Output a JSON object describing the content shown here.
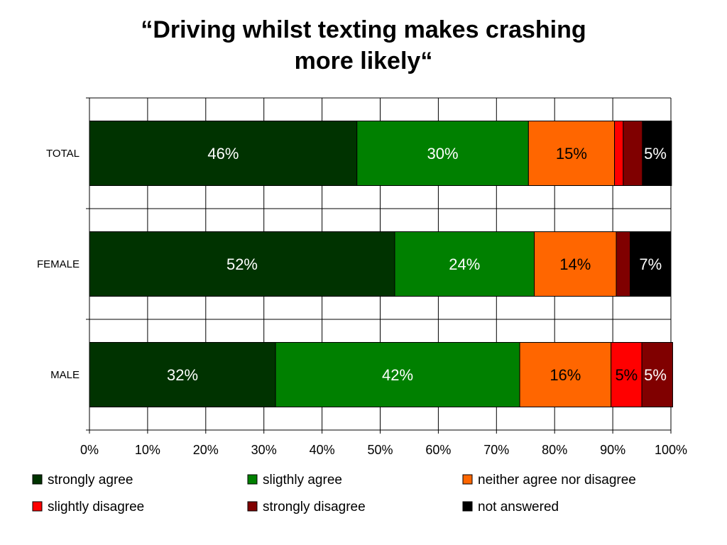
{
  "chart_data": {
    "type": "stacked-bar-horizontal",
    "title_lines": [
      "“Driving whilst texting makes crashing",
      "more likely“"
    ],
    "categories": [
      "TOTAL",
      "FEMALE",
      "MALE"
    ],
    "xlim": [
      0,
      100
    ],
    "xticks": [
      "0%",
      "10%",
      "20%",
      "30%",
      "40%",
      "50%",
      "60%",
      "70%",
      "80%",
      "90%",
      "100%"
    ],
    "grid": true,
    "legend_position": "bottom",
    "series": [
      {
        "name": "strongly agree",
        "color": "#003300",
        "values": [
          46,
          52.5,
          32
        ],
        "labels": [
          "46%",
          "52%",
          "32%"
        ],
        "label_color": "#ffffff"
      },
      {
        "name": "sligthly agree",
        "color": "#008000",
        "values": [
          29.5,
          24,
          42
        ],
        "labels": [
          "30%",
          "24%",
          "42%"
        ],
        "label_color": "#ffffff"
      },
      {
        "name": "neither agree nor disagree",
        "color": "#ff6600",
        "values": [
          14.8,
          14.1,
          15.7
        ],
        "labels": [
          "15%",
          "14%",
          "16%"
        ],
        "label_color": "#000000"
      },
      {
        "name": "slightly disagree",
        "color": "#ff0000",
        "values": [
          1.5,
          0,
          5.3
        ],
        "labels": [
          "",
          "",
          "5%"
        ],
        "label_color": "#000000"
      },
      {
        "name": "strongly disagree",
        "color": "#800000",
        "values": [
          3.3,
          2.4,
          5.3
        ],
        "labels": [
          "",
          "",
          "5%"
        ],
        "label_color": "#ffffff"
      },
      {
        "name": "not answered",
        "color": "#000000",
        "values": [
          5,
          7,
          0
        ],
        "labels": [
          "5%",
          "7%",
          ""
        ],
        "label_color": "#ffffff"
      }
    ]
  }
}
